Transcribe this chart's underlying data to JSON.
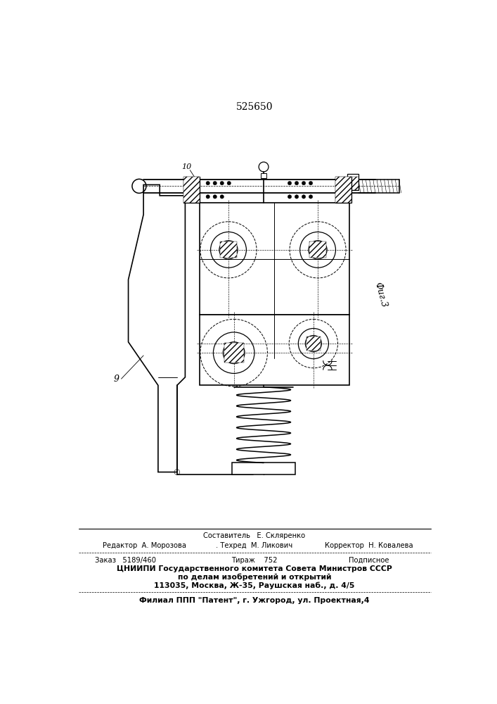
{
  "title": "525650",
  "fig_label": "Фиг.3",
  "label_9": "9",
  "label_10": "10",
  "bg_color": "#ffffff",
  "line_color": "#000000",
  "footer_line1": "Составитель   Е. Скляренко",
  "footer_line2a": "Редактор  А. Морозова",
  "footer_line2b": ". Техред  М. Ликович",
  "footer_line2c": "Корректор  Н. Ковалева",
  "footer_line3a": "Заказ   5189/460",
  "footer_line3b": "Тираж    752",
  "footer_line3c": "Подписное",
  "footer_line4": "ЦНИИПИ Государственного комитета Совета Министров СССР",
  "footer_line5": "по делам изобретений и открытий",
  "footer_line6": "113035, Москва, Ж-35, Раушская наб., д. 4/5",
  "footer_line7": "Филиал ППП \"Патент\", г. Ужгород, ул. Проектная,4"
}
